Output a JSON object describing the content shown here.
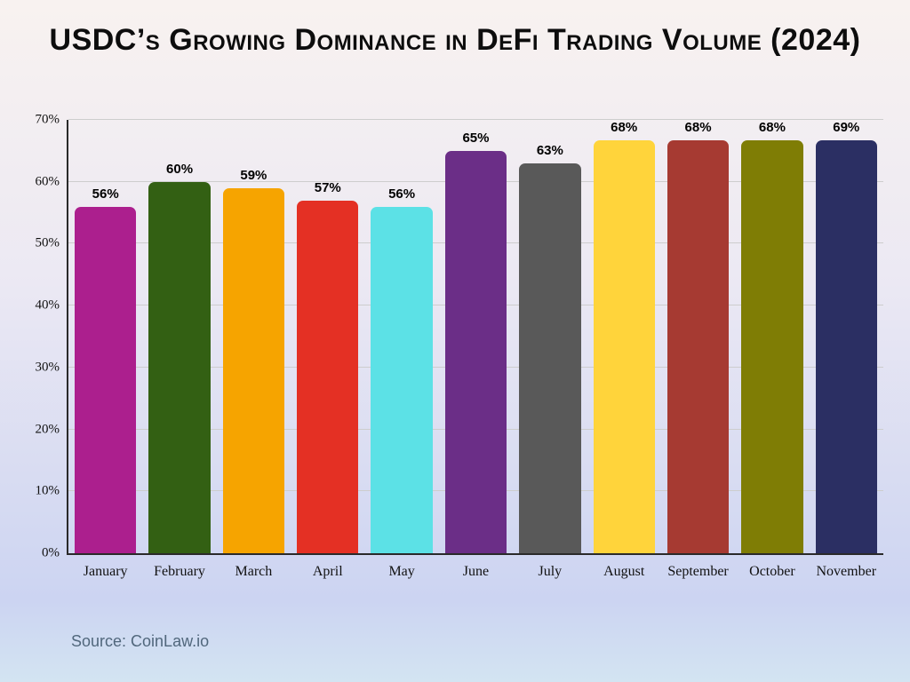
{
  "title": "USDC’s Growing Dominance in DeFi Trading Volume (2024)",
  "source": "Source: CoinLaw.io",
  "chart_data": {
    "type": "bar",
    "title": "USDC’s Growing Dominance in DeFi Trading Volume (2024)",
    "categories": [
      "January",
      "February",
      "March",
      "April",
      "May",
      "June",
      "July",
      "August",
      "September",
      "October",
      "November"
    ],
    "values": [
      56,
      60,
      59,
      57,
      56,
      65,
      63,
      68,
      68,
      68,
      69
    ],
    "value_suffix": "%",
    "bar_colors": [
      "#AC1F8E",
      "#336013",
      "#F6A400",
      "#E43024",
      "#5CE1E6",
      "#6B2E87",
      "#595959",
      "#FFD43B",
      "#A63A32",
      "#7F7D05",
      "#2B2F63"
    ],
    "xlabel": "",
    "ylabel": "",
    "ylim": [
      0,
      70
    ],
    "yticks": [
      0,
      10,
      20,
      30,
      40,
      50,
      60,
      70
    ],
    "ytick_suffix": "%",
    "grid": true,
    "legend": "none",
    "source": "Source: CoinLaw.io"
  }
}
